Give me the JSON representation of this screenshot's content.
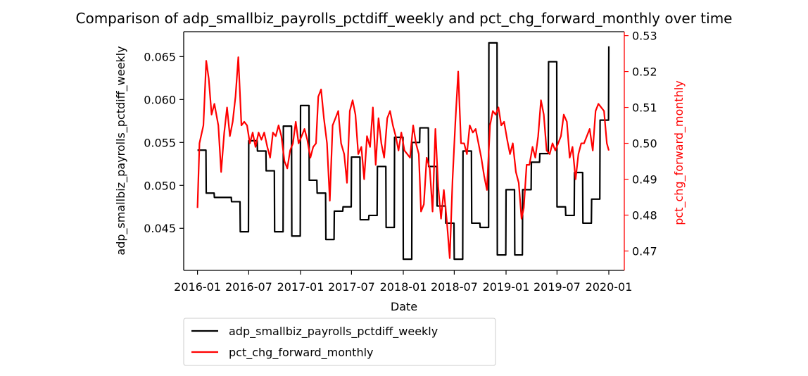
{
  "chart_data": {
    "type": "line",
    "title": "Comparison of adp_smallbiz_payrolls_pctdiff_weekly and pct_chg_forward_monthly over time",
    "xlabel": "Date",
    "ylabel_left": "adp_smallbiz_payrolls_pctdiff_weekly",
    "ylabel_right": "pct_chg_forward_monthly",
    "x_ticks": [
      "2016-01",
      "2016-07",
      "2017-01",
      "2017-07",
      "2018-01",
      "2018-07",
      "2019-01",
      "2019-07",
      "2020-01"
    ],
    "y_left_ticks": [
      "0.045",
      "0.050",
      "0.055",
      "0.060",
      "0.065"
    ],
    "y_right_ticks": [
      "0.47",
      "0.48",
      "0.49",
      "0.50",
      "0.51",
      "0.52",
      "0.53"
    ],
    "xlim": [
      "2015-11-13",
      "2020-02-25"
    ],
    "ylim_left": [
      0.0401,
      0.0679
    ],
    "ylim_right": [
      0.4646,
      0.5311
    ],
    "grid": false,
    "legend_placement": "below chart, left",
    "series": [
      {
        "name": "adp_smallbiz_payrolls_pctdiff_weekly",
        "axis": "left",
        "color": "#000000",
        "x": [
          "2016-01-01",
          "2016-01-31",
          "2016-02-01",
          "2016-02-29",
          "2016-03-01",
          "2016-04-30",
          "2016-05-01",
          "2016-05-31",
          "2016-06-01",
          "2016-06-30",
          "2016-07-01",
          "2016-07-31",
          "2016-08-01",
          "2016-08-31",
          "2016-09-01",
          "2016-09-30",
          "2016-10-01",
          "2016-10-31",
          "2016-11-01",
          "2016-11-30",
          "2016-12-01",
          "2016-12-31",
          "2017-01-01",
          "2017-01-31",
          "2017-02-01",
          "2017-02-28",
          "2017-03-01",
          "2017-03-31",
          "2017-04-01",
          "2017-04-30",
          "2017-05-01",
          "2017-05-31",
          "2017-06-01",
          "2017-06-30",
          "2017-07-01",
          "2017-07-31",
          "2017-08-01",
          "2017-08-31",
          "2017-09-01",
          "2017-09-30",
          "2017-10-01",
          "2017-10-31",
          "2017-11-01",
          "2017-11-30",
          "2017-12-01",
          "2017-12-31",
          "2018-01-01",
          "2018-01-31",
          "2018-02-01",
          "2018-02-28",
          "2018-03-01",
          "2018-03-31",
          "2018-04-01",
          "2018-04-30",
          "2018-05-01",
          "2018-05-31",
          "2018-06-01",
          "2018-06-30",
          "2018-07-01",
          "2018-07-31",
          "2018-08-01",
          "2018-08-31",
          "2018-09-01",
          "2018-09-30",
          "2018-10-01",
          "2018-10-31",
          "2018-11-01",
          "2018-11-30",
          "2018-12-01",
          "2018-12-31",
          "2019-01-01",
          "2019-01-31",
          "2019-02-01",
          "2019-02-28",
          "2019-03-01",
          "2019-03-31",
          "2019-04-01",
          "2019-04-30",
          "2019-05-01",
          "2019-05-31",
          "2019-06-01",
          "2019-06-30",
          "2019-07-01",
          "2019-07-31",
          "2019-08-01",
          "2019-08-31",
          "2019-09-01",
          "2019-09-30",
          "2019-10-01",
          "2019-10-31",
          "2019-11-01",
          "2019-11-30",
          "2019-12-01",
          "2019-12-31",
          "2020-01-01"
        ],
        "values": [
          0.0541,
          0.0541,
          0.0491,
          0.0491,
          0.0486,
          0.0486,
          0.0481,
          0.0481,
          0.0446,
          0.0446,
          0.0552,
          0.0552,
          0.054,
          0.054,
          0.0517,
          0.0517,
          0.0446,
          0.0446,
          0.0569,
          0.0569,
          0.0441,
          0.0441,
          0.0593,
          0.0593,
          0.0506,
          0.0506,
          0.0491,
          0.0491,
          0.0437,
          0.0437,
          0.047,
          0.047,
          0.0475,
          0.0475,
          0.0533,
          0.0533,
          0.046,
          0.046,
          0.0465,
          0.0465,
          0.0522,
          0.0522,
          0.0451,
          0.0451,
          0.0556,
          0.0556,
          0.0414,
          0.0414,
          0.055,
          0.055,
          0.0567,
          0.0567,
          0.0522,
          0.0522,
          0.0476,
          0.0476,
          0.0456,
          0.0456,
          0.0414,
          0.0414,
          0.054,
          0.054,
          0.0456,
          0.0456,
          0.0451,
          0.0451,
          0.0666,
          0.0666,
          0.0419,
          0.0419,
          0.0495,
          0.0495,
          0.0419,
          0.0419,
          0.0495,
          0.0495,
          0.0527,
          0.0527,
          0.0537,
          0.0537,
          0.0644,
          0.0644,
          0.0475,
          0.0475,
          0.0465,
          0.0465,
          0.0515,
          0.0515,
          0.0456,
          0.0456,
          0.0484,
          0.0484,
          0.0576,
          0.0576,
          0.0662
        ]
      },
      {
        "name": "pct_chg_forward_monthly",
        "axis": "right",
        "color": "#ff0000",
        "x": [
          "2016-01-01",
          "2016-01-08",
          "2016-01-22",
          "2016-02-01",
          "2016-02-10",
          "2016-02-20",
          "2016-03-01",
          "2016-03-15",
          "2016-03-25",
          "2016-04-05",
          "2016-04-15",
          "2016-04-25",
          "2016-05-05",
          "2016-05-15",
          "2016-05-25",
          "2016-06-05",
          "2016-06-15",
          "2016-06-25",
          "2016-07-05",
          "2016-07-15",
          "2016-07-25",
          "2016-08-05",
          "2016-08-15",
          "2016-08-25",
          "2016-09-05",
          "2016-09-15",
          "2016-09-25",
          "2016-10-05",
          "2016-10-15",
          "2016-10-25",
          "2016-11-05",
          "2016-11-15",
          "2016-11-25",
          "2016-12-05",
          "2016-12-15",
          "2016-12-25",
          "2017-01-05",
          "2017-01-15",
          "2017-01-25",
          "2017-02-05",
          "2017-02-15",
          "2017-02-25",
          "2017-03-05",
          "2017-03-15",
          "2017-03-25",
          "2017-04-05",
          "2017-04-15",
          "2017-04-25",
          "2017-05-05",
          "2017-05-15",
          "2017-05-25",
          "2017-06-05",
          "2017-06-15",
          "2017-06-25",
          "2017-07-05",
          "2017-07-15",
          "2017-07-25",
          "2017-08-05",
          "2017-08-15",
          "2017-08-25",
          "2017-09-05",
          "2017-09-15",
          "2017-09-25",
          "2017-10-05",
          "2017-10-15",
          "2017-10-25",
          "2017-11-05",
          "2017-11-15",
          "2017-11-25",
          "2017-12-05",
          "2017-12-15",
          "2017-12-25",
          "2018-01-05",
          "2018-01-15",
          "2018-01-25",
          "2018-02-05",
          "2018-02-15",
          "2018-02-25",
          "2018-03-05",
          "2018-03-15",
          "2018-03-25",
          "2018-04-05",
          "2018-04-15",
          "2018-04-25",
          "2018-05-05",
          "2018-05-15",
          "2018-05-25",
          "2018-06-05",
          "2018-06-15",
          "2018-06-25",
          "2018-07-05",
          "2018-07-15",
          "2018-07-25",
          "2018-08-05",
          "2018-08-15",
          "2018-08-25",
          "2018-09-05",
          "2018-09-15",
          "2018-09-25",
          "2018-10-05",
          "2018-10-15",
          "2018-10-25",
          "2018-11-05",
          "2018-11-15",
          "2018-11-25",
          "2018-12-05",
          "2018-12-15",
          "2018-12-25",
          "2019-01-05",
          "2019-01-15",
          "2019-01-25",
          "2019-02-05",
          "2019-02-15",
          "2019-02-25",
          "2019-03-05",
          "2019-03-15",
          "2019-03-25",
          "2019-04-05",
          "2019-04-15",
          "2019-04-25",
          "2019-05-05",
          "2019-05-15",
          "2019-05-25",
          "2019-06-05",
          "2019-06-15",
          "2019-06-25",
          "2019-07-05",
          "2019-07-15",
          "2019-07-25",
          "2019-08-05",
          "2019-08-15",
          "2019-08-25",
          "2019-09-05",
          "2019-09-15",
          "2019-09-25",
          "2019-10-05",
          "2019-10-15",
          "2019-10-25",
          "2019-11-05",
          "2019-11-15",
          "2019-11-25",
          "2019-12-05",
          "2019-12-15",
          "2019-12-25",
          "2020-01-01"
        ],
        "values": [
          0.482,
          0.5,
          0.505,
          0.523,
          0.518,
          0.508,
          0.511,
          0.505,
          0.492,
          0.503,
          0.51,
          0.502,
          0.506,
          0.513,
          0.524,
          0.505,
          0.506,
          0.505,
          0.5,
          0.503,
          0.499,
          0.503,
          0.501,
          0.503,
          0.499,
          0.496,
          0.503,
          0.502,
          0.505,
          0.502,
          0.495,
          0.493,
          0.498,
          0.5,
          0.506,
          0.5,
          0.502,
          0.504,
          0.501,
          0.496,
          0.499,
          0.5,
          0.513,
          0.515,
          0.507,
          0.5,
          0.484,
          0.505,
          0.507,
          0.509,
          0.5,
          0.497,
          0.489,
          0.509,
          0.512,
          0.508,
          0.497,
          0.499,
          0.49,
          0.502,
          0.499,
          0.51,
          0.494,
          0.507,
          0.5,
          0.496,
          0.507,
          0.509,
          0.505,
          0.502,
          0.498,
          0.503,
          0.498,
          0.497,
          0.496,
          0.505,
          0.5,
          0.497,
          0.481,
          0.483,
          0.496,
          0.493,
          0.481,
          0.504,
          0.488,
          0.479,
          0.487,
          0.478,
          0.468,
          0.49,
          0.506,
          0.52,
          0.5,
          0.5,
          0.497,
          0.505,
          0.503,
          0.504,
          0.5,
          0.496,
          0.491,
          0.487,
          0.505,
          0.509,
          0.508,
          0.51,
          0.505,
          0.506,
          0.501,
          0.497,
          0.5,
          0.492,
          0.489,
          0.479,
          0.482,
          0.494,
          0.494,
          0.499,
          0.496,
          0.502,
          0.512,
          0.508,
          0.498,
          0.497,
          0.5,
          0.498,
          0.5,
          0.502,
          0.508,
          0.506,
          0.496,
          0.499,
          0.49,
          0.497,
          0.5,
          0.5,
          0.502,
          0.504,
          0.498,
          0.509,
          0.511,
          0.51,
          0.509,
          0.5,
          0.498
        ]
      }
    ]
  }
}
